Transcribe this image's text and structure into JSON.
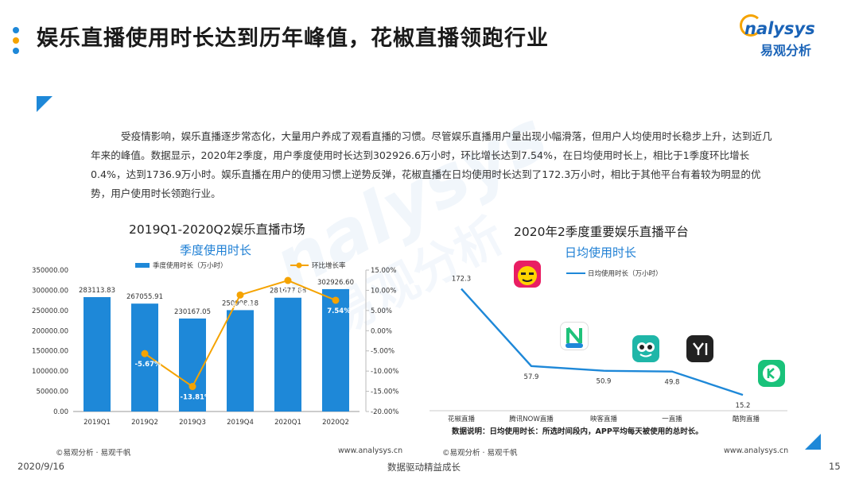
{
  "header": {
    "title": "娱乐直播使用时长达到历年峰值，花椒直播领跑行业",
    "brand_top": "nalysys",
    "brand_bottom": "易观分析",
    "dot_colors": [
      "#1e88d8",
      "#f5a300",
      "#1e88d8"
    ]
  },
  "watermark": {
    "line1": "nalysys",
    "line2": "易观分析"
  },
  "paragraph": "受疫情影响，娱乐直播逐步常态化，大量用户养成了观看直播的习惯。尽管娱乐直播用户量出现小幅滑落，但用户人均使用时长稳步上升，达到近几年来的峰值。数据显示，2020年2季度，用户季度使用时长达到302926.6万小时，环比增长达到7.54%，在日均使用时长上，相比于1季度环比增长0.4%，达到1736.9万小时。娱乐直播在用户的使用习惯上逆势反弹，花椒直播在日均使用时长达到了172.3万小时，相比于其他平台有着较为明显的优势，用户使用时长领跑行业。",
  "chart_data": [
    {
      "type": "bar",
      "title": "2019Q1-2020Q2娱乐直播市场",
      "subtitle": "季度使用时长",
      "categories": [
        "2019Q1",
        "2019Q2",
        "2019Q3",
        "2019Q4",
        "2020Q1",
        "2020Q2"
      ],
      "series": [
        {
          "name": "季度使用时长（万小时）",
          "type": "bar",
          "axis": "left",
          "values": [
            283113.83,
            267055.91,
            230167.05,
            250908.18,
            281677.88,
            302926.6
          ],
          "labels": [
            "283113.83",
            "267055.91",
            "230167.05",
            "250908.18",
            "281677.88",
            "302926.60"
          ]
        },
        {
          "name": "环比增长率",
          "type": "line",
          "axis": "right",
          "values": [
            null,
            -5.67,
            -13.81,
            8.84,
            12.44,
            7.54
          ],
          "labels": [
            "",
            "-5.67%",
            "-13.81%",
            "8.84%",
            "12.44%",
            "7.54%"
          ]
        }
      ],
      "ylim_left": [
        0,
        350000
      ],
      "yticks_left": [
        "0.00",
        "50000.00",
        "100000.00",
        "150000.00",
        "200000.00",
        "250000.00",
        "300000.00",
        "350000.00"
      ],
      "ylim_right": [
        -20,
        15
      ],
      "yticks_right": [
        "-20.00%",
        "-15.00%",
        "-10.00%",
        "-5.00%",
        "0.00%",
        "5.00%",
        "10.00%",
        "15.00%"
      ],
      "legend": "top",
      "grid": false,
      "colors": {
        "bar": "#1e88d8",
        "line": "#f5a300"
      },
      "footer_left": "©易观分析 · 易观千帆",
      "footer_right": "www.analysys.cn"
    },
    {
      "type": "line",
      "title": "2020年2季度重要娱乐直播平台",
      "subtitle": "日均使用时长",
      "categories": [
        "花椒直播",
        "腾讯NOW直播",
        "映客直播",
        "一直播",
        "酷狗直播"
      ],
      "series": [
        {
          "name": "日均使用时长（万小时）",
          "values": [
            172.3,
            57.9,
            50.9,
            49.8,
            15.2
          ],
          "labels": [
            "172.3",
            "57.9",
            "50.9",
            "49.8",
            "15.2"
          ]
        }
      ],
      "ylim": [
        0,
        200
      ],
      "legend": "top",
      "grid": false,
      "colors": {
        "line": "#1e88d8"
      },
      "note": "数据说明：日均使用时长：所选时间段内，APP平均每天被使用的总时长。",
      "footer_left": "©易观分析 · 易观千帆",
      "footer_right": "www.analysys.cn"
    }
  ],
  "app_icons": [
    "huajiao-icon",
    "now-live-icon",
    "inke-icon",
    "yizhibo-icon",
    "kugou-live-icon"
  ],
  "page_footer": {
    "date": "2020/9/16",
    "slogan": "数据驱动精益成长",
    "page": "15"
  }
}
